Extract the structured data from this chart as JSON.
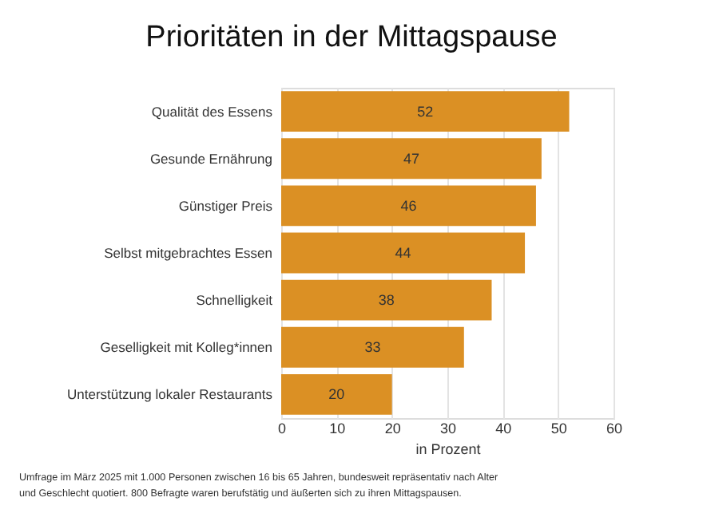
{
  "chart_data": {
    "type": "bar",
    "orientation": "horizontal",
    "title": "Prioritäten in der Mittagspause",
    "xlabel": "in Prozent",
    "categories": [
      "Qualität des Essens",
      "Gesunde Ernährung",
      "Günstiger Preis",
      "Selbst mitgebrachtes Essen",
      "Schnelligkeit",
      "Geselligkeit mit Kolleg*innen",
      "Unterstützung lokaler Restaurants"
    ],
    "values": [
      52,
      47,
      46,
      44,
      38,
      33,
      20
    ],
    "color": "#db9024",
    "data_labels": true,
    "xlim": [
      0,
      60
    ],
    "xticks": [
      0,
      10,
      20,
      30,
      40,
      50,
      60
    ],
    "grid": "x",
    "annotations": [
      "Umfrage im März 2025 mit 1.000 Personen zwischen 16 bis 65 Jahren, bundesweit repräsentativ nach Alter und Geschlecht quotiert. 800 Befragte waren berufstätig und äußerten sich zu ihren Mittagspausen."
    ]
  }
}
